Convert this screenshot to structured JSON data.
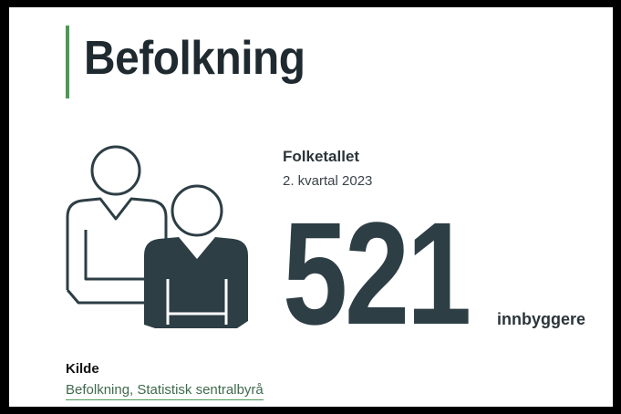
{
  "header": {
    "title": "Befolkning"
  },
  "stat": {
    "label": "Folketallet",
    "period": "2. kvartal 2023",
    "value": "521",
    "unit": "innbyggere"
  },
  "source": {
    "heading": "Kilde",
    "link": "Befolkning, Statistisk sentralbyrå"
  }
}
